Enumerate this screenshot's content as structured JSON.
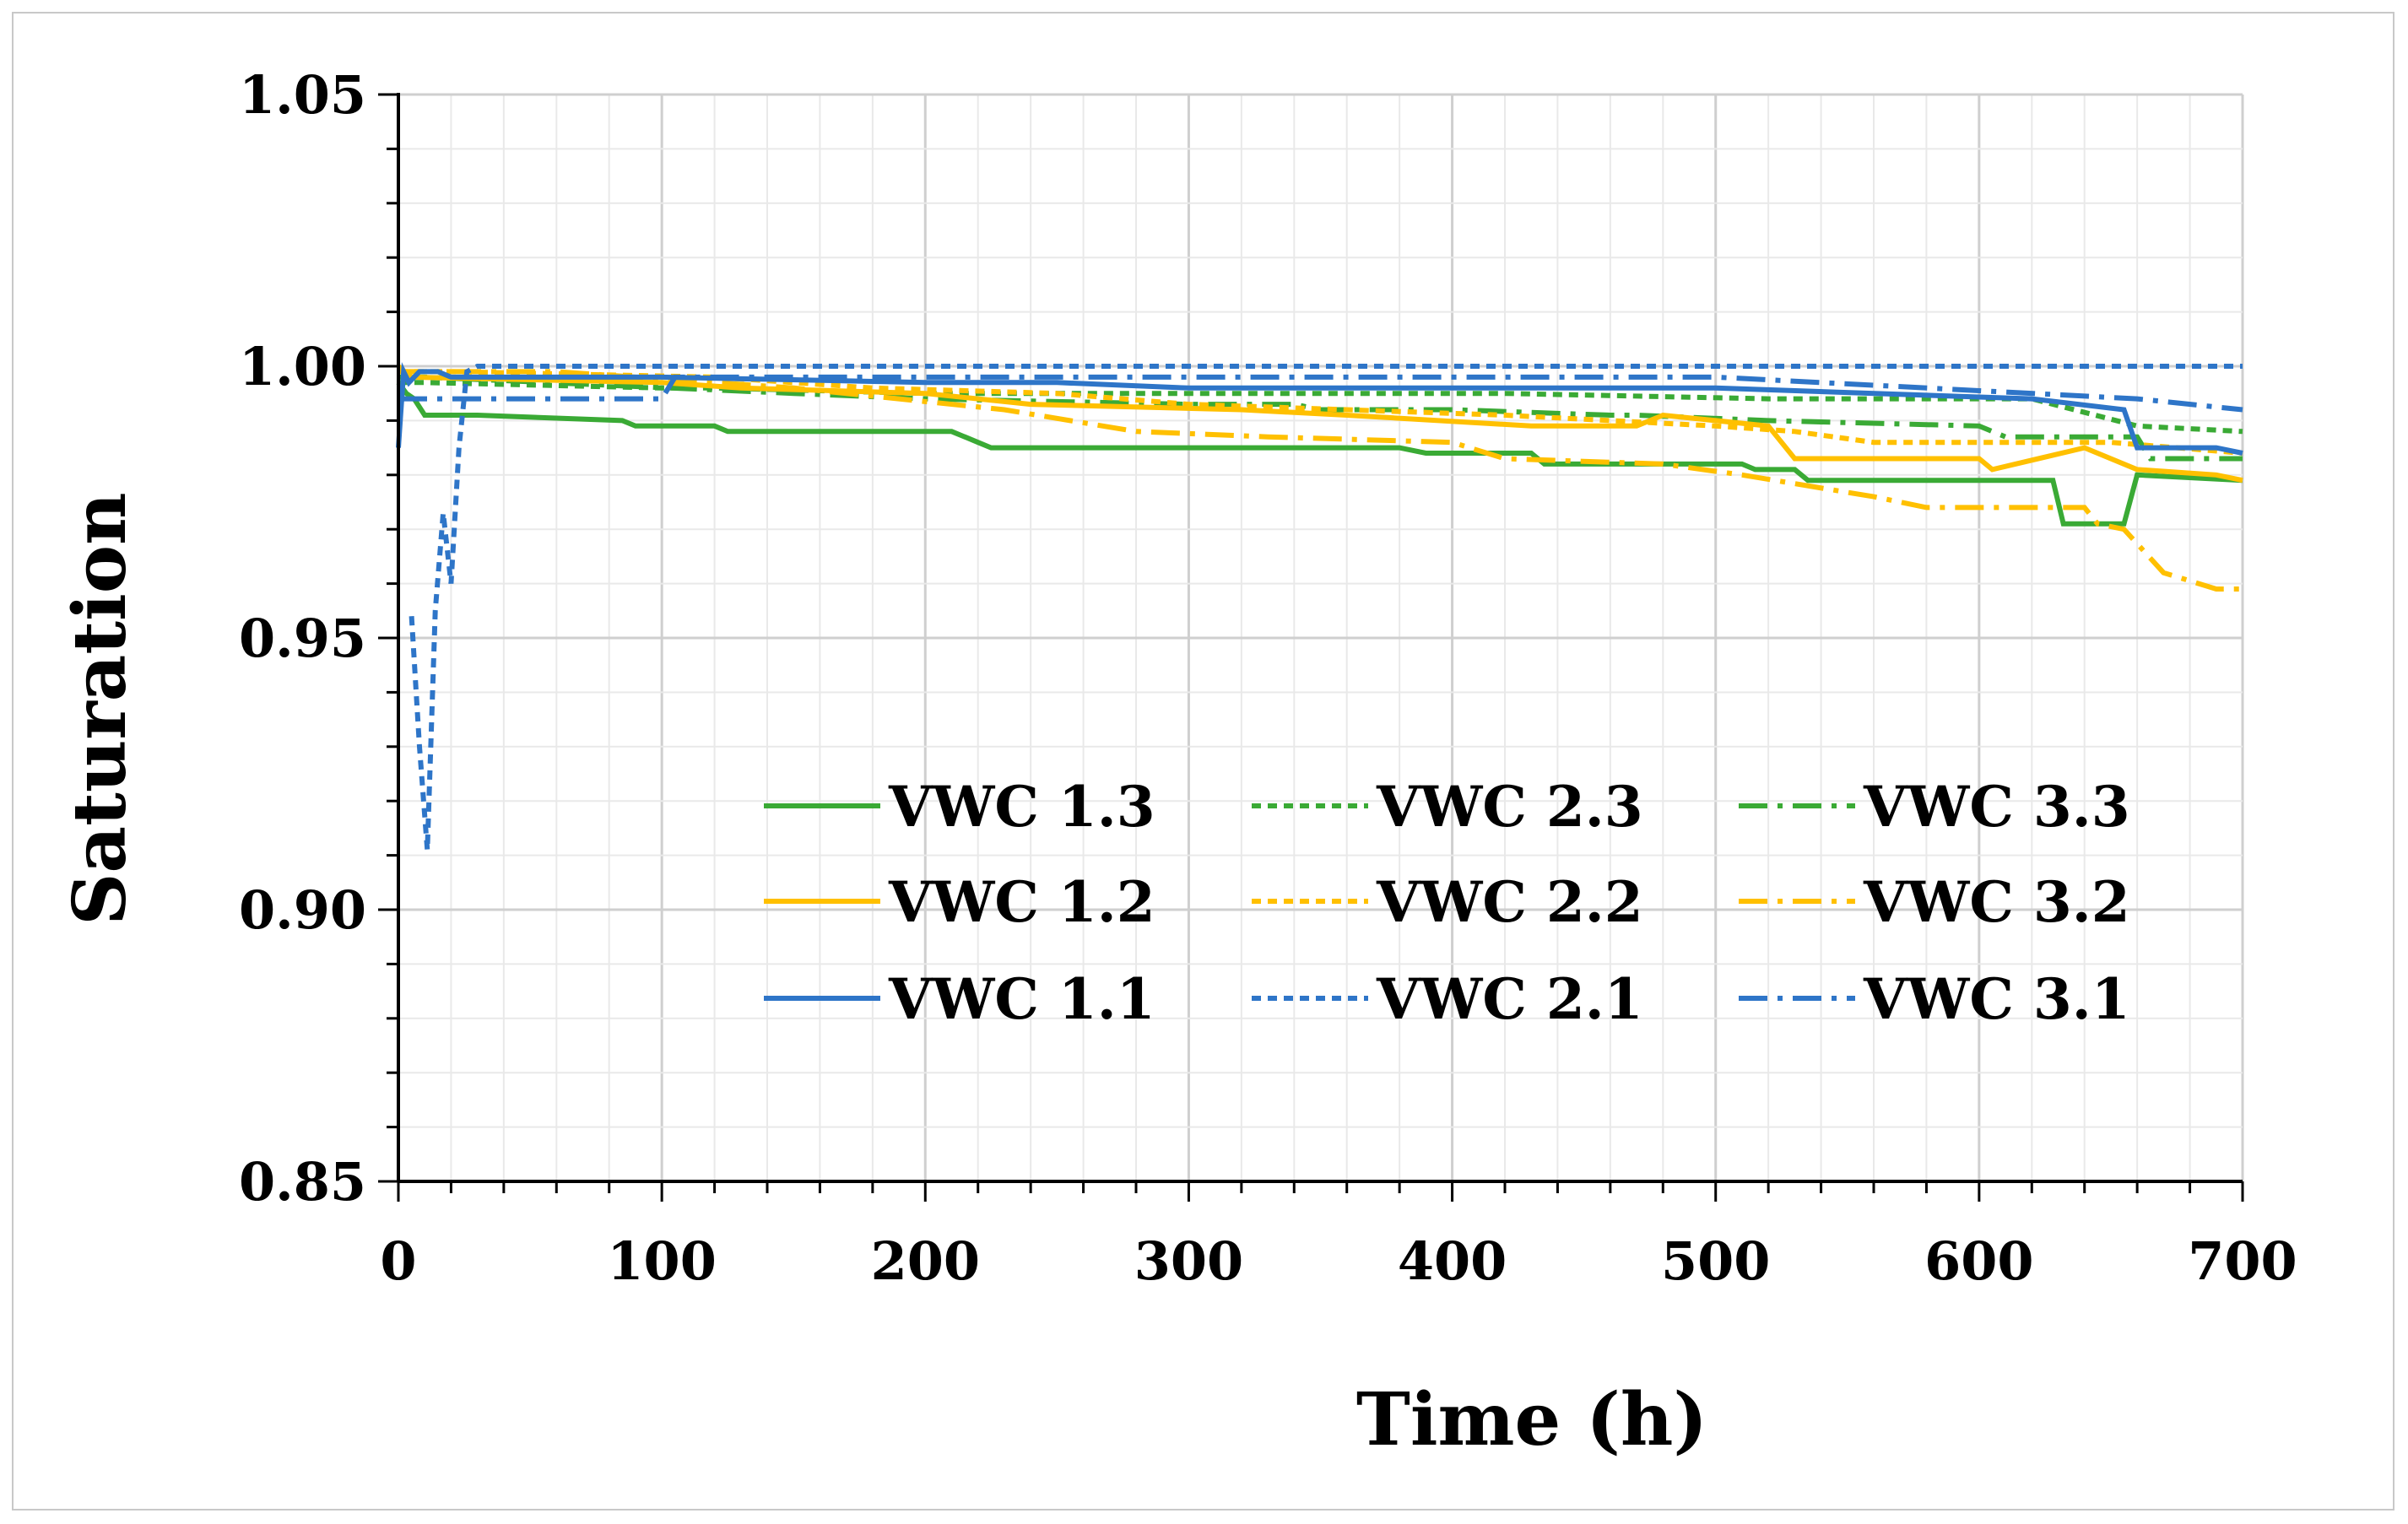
{
  "chart_data": {
    "type": "line",
    "title": "",
    "xlabel": "Time (h)",
    "ylabel": "Saturation",
    "xlim": [
      0,
      700
    ],
    "ylim": [
      0.85,
      1.05
    ],
    "xticks": [
      "0",
      "100",
      "200",
      "300",
      "400",
      "500",
      "600",
      "700"
    ],
    "yticks": [
      "0.85",
      "0.90",
      "0.95",
      "1.00",
      "1.05"
    ],
    "grid": true,
    "legend_position": "center-right",
    "series": [
      {
        "name": "VWC 1.3",
        "color": "#3aaa35",
        "dash": "solid",
        "x": [
          0,
          3,
          6,
          10,
          30,
          85,
          90,
          120,
          125,
          210,
          215,
          220,
          225,
          380,
          390,
          430,
          435,
          510,
          515,
          530,
          535,
          628,
          632,
          655,
          660,
          700
        ],
        "y": [
          0.997,
          0.995,
          0.994,
          0.991,
          0.991,
          0.99,
          0.989,
          0.989,
          0.988,
          0.988,
          0.987,
          0.986,
          0.985,
          0.985,
          0.984,
          0.984,
          0.982,
          0.982,
          0.981,
          0.981,
          0.979,
          0.979,
          0.971,
          0.971,
          0.98,
          0.979
        ]
      },
      {
        "name": "VWC 2.3",
        "color": "#3aaa35",
        "dash": "short",
        "x": [
          0,
          10,
          100,
          120,
          200,
          400,
          420,
          520,
          560,
          620,
          660,
          700
        ],
        "y": [
          0.997,
          0.997,
          0.996,
          0.996,
          0.995,
          0.995,
          0.995,
          0.994,
          0.994,
          0.994,
          0.989,
          0.988
        ]
      },
      {
        "name": "VWC 3.3",
        "color": "#3aaa35",
        "dash": "dashdot",
        "x": [
          0,
          10,
          150,
          200,
          300,
          340,
          350,
          400,
          460,
          470,
          520,
          600,
          610,
          660,
          665,
          700
        ],
        "y": [
          0.998,
          0.998,
          0.995,
          0.994,
          0.993,
          0.993,
          0.992,
          0.992,
          0.991,
          0.991,
          0.99,
          0.989,
          0.987,
          0.987,
          0.983,
          0.983
        ]
      },
      {
        "name": "VWC 1.2",
        "color": "#ffc000",
        "dash": "solid",
        "x": [
          0,
          5,
          100,
          130,
          200,
          240,
          320,
          360,
          430,
          470,
          480,
          520,
          530,
          535,
          600,
          605,
          640,
          660,
          690,
          700
        ],
        "y": [
          1.0,
          0.998,
          0.997,
          0.996,
          0.995,
          0.993,
          0.992,
          0.991,
          0.989,
          0.989,
          0.991,
          0.989,
          0.983,
          0.983,
          0.983,
          0.981,
          0.985,
          0.981,
          0.98,
          0.979
        ]
      },
      {
        "name": "VWC 2.2",
        "color": "#ffc000",
        "dash": "short",
        "x": [
          0,
          20,
          120,
          180,
          250,
          300,
          420,
          500,
          530,
          560,
          600,
          650,
          700
        ],
        "y": [
          0.999,
          0.999,
          0.998,
          0.996,
          0.995,
          0.993,
          0.991,
          0.989,
          0.988,
          0.986,
          0.986,
          0.986,
          0.984
        ]
      },
      {
        "name": "VWC 3.2",
        "color": "#ffc000",
        "dash": "dashdot",
        "x": [
          0,
          60,
          150,
          230,
          280,
          330,
          400,
          420,
          480,
          510,
          560,
          580,
          640,
          645,
          655,
          670,
          690,
          700
        ],
        "y": [
          0.999,
          0.999,
          0.996,
          0.992,
          0.988,
          0.987,
          0.986,
          0.983,
          0.982,
          0.98,
          0.976,
          0.974,
          0.974,
          0.971,
          0.97,
          0.962,
          0.959,
          0.959
        ]
      },
      {
        "name": "VWC 1.1",
        "color": "#2e75c8",
        "dash": "solid",
        "x": [
          0,
          2,
          4,
          8,
          15,
          20,
          30,
          100,
          200,
          250,
          300,
          500,
          620,
          655,
          660,
          690,
          700
        ],
        "y": [
          0.985,
          0.999,
          0.997,
          0.999,
          0.999,
          0.998,
          0.998,
          0.998,
          0.997,
          0.997,
          0.996,
          0.996,
          0.994,
          0.992,
          0.985,
          0.985,
          0.984
        ]
      },
      {
        "name": "VWC 2.1",
        "color": "#2e75c8",
        "dash": "short",
        "x": [
          5,
          8,
          11,
          14,
          17,
          20,
          23,
          26,
          30,
          100,
          400,
          700
        ],
        "y": [
          0.954,
          0.93,
          0.911,
          0.955,
          0.973,
          0.96,
          0.985,
          0.999,
          1.0,
          1.0,
          1.0,
          1.0
        ]
      },
      {
        "name": "VWC 3.1",
        "color": "#2e75c8",
        "dash": "dashdot",
        "x": [
          0,
          5,
          10,
          100,
          105,
          300,
          500,
          660,
          700
        ],
        "y": [
          0.994,
          0.994,
          0.994,
          0.994,
          0.998,
          0.998,
          0.998,
          0.994,
          0.992
        ]
      }
    ]
  }
}
